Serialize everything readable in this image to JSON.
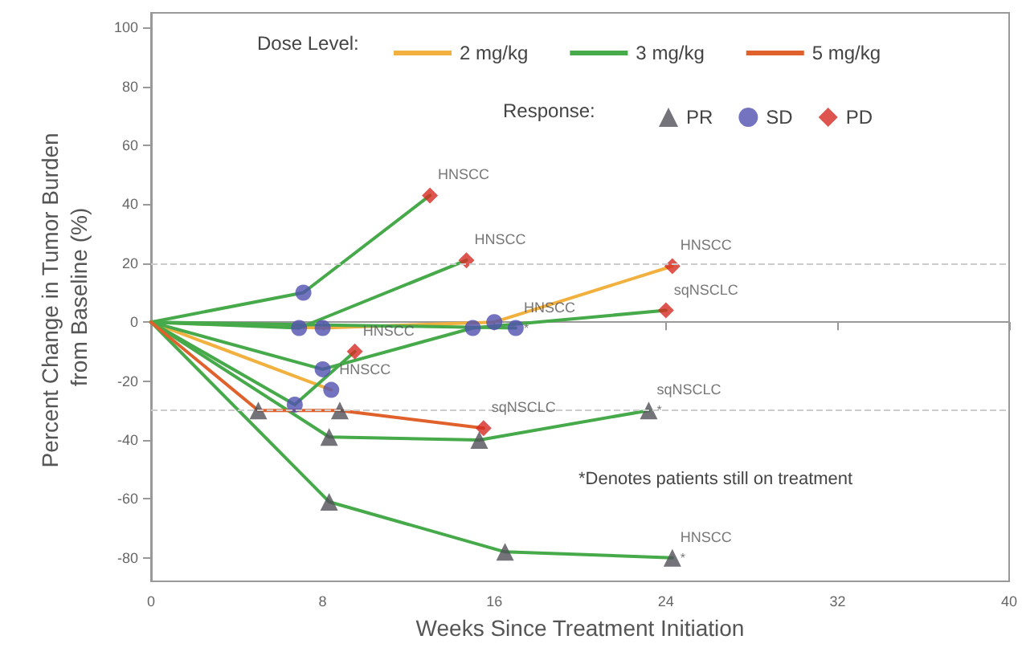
{
  "chart_data": {
    "type": "line",
    "xlabel": "Weeks Since Treatment Initiation",
    "ylabel": "Percent Change in Tumor Burden from Baseline (%)",
    "legend_title": "Dose Level:",
    "legend": "top",
    "xlim": [
      0,
      40
    ],
    "xticks": [
      0,
      8,
      16,
      24,
      32,
      40
    ],
    "ylim": [
      -88,
      105
    ],
    "yticks": [
      -80,
      -60,
      -40,
      -20,
      0,
      20,
      40,
      60,
      80,
      100
    ],
    "grid": false,
    "marker": "none",
    "line_style": "solid",
    "series": [
      {
        "name": "2 mg/kg",
        "color": "#f2b13e",
        "x": [
          0,
          8,
          16,
          24.3
        ],
        "values": [
          0,
          -2,
          0,
          19
        ]
      },
      {
        "color": "#f2b13e",
        "x": [
          0,
          8.4
        ],
        "values": [
          0,
          -23
        ]
      },
      {
        "name": "3 mg/kg",
        "color": "#46a94a",
        "x": [
          0,
          7.1,
          13
        ],
        "values": [
          0,
          10,
          43
        ]
      },
      {
        "color": "#46a94a",
        "x": [
          0,
          6.9,
          14.7
        ],
        "values": [
          0,
          -2,
          21
        ]
      },
      {
        "color": "#46a94a",
        "x": [
          0,
          8,
          15,
          24
        ],
        "values": [
          0,
          -16,
          -2,
          4
        ]
      },
      {
        "color": "#46a94a",
        "x": [
          0,
          17
        ],
        "values": [
          0,
          -2
        ]
      },
      {
        "color": "#46a94a",
        "x": [
          0,
          6.7,
          9.5
        ],
        "values": [
          0,
          -28,
          -10
        ]
      },
      {
        "color": "#46a94a",
        "x": [
          0,
          8.3,
          15.3,
          23.2
        ],
        "values": [
          0,
          -39,
          -40,
          -30
        ]
      },
      {
        "color": "#46a94a",
        "x": [
          0,
          8.3,
          16.5,
          24.3
        ],
        "values": [
          0,
          -61,
          -78,
          -80
        ]
      },
      {
        "name": "5 mg/kg",
        "color": "#e0612c",
        "x": [
          0,
          5,
          8.8,
          15.5
        ],
        "values": [
          0,
          -30,
          -30,
          -36
        ]
      },
      {
        "name": "PR",
        "type": "scatter",
        "marker": "triangle",
        "color": "#505058",
        "x": [
          5,
          8.8,
          8.3,
          15.3,
          23.2,
          8.3,
          16.5,
          24.3
        ],
        "values": [
          -30,
          -30,
          -39,
          -40,
          -30,
          -61,
          -78,
          -80
        ]
      },
      {
        "name": "SD",
        "type": "scatter",
        "marker": "circle",
        "color": "#5050b0",
        "x": [
          7.1,
          6.9,
          8,
          16,
          8,
          15,
          17,
          6.7,
          8.4
        ],
        "values": [
          10,
          -2,
          -2,
          0,
          -16,
          -2,
          -2,
          -28,
          -23
        ]
      },
      {
        "name": "PD",
        "type": "scatter",
        "marker": "diamond",
        "color": "#d42a22",
        "x": [
          13,
          14.7,
          24.3,
          24,
          9.5,
          15.5
        ],
        "values": [
          43,
          21,
          19,
          4,
          -10,
          -36
        ]
      }
    ],
    "ref_lines": [
      {
        "axis": "y",
        "value": 20,
        "color": "#cccccc",
        "line_style": "dashed"
      },
      {
        "axis": "y",
        "value": -30,
        "color": "#cccccc",
        "line_style": "dashed"
      }
    ],
    "annotations": [
      "Response:",
      "*Denotes patients still on treatment",
      {
        "text": "HNSCC",
        "x": 13,
        "y": 43
      },
      {
        "text": "HNSCC",
        "x": 14.7,
        "y": 21
      },
      {
        "text": "HNSCC",
        "x": 24.3,
        "y": 19
      },
      {
        "text": "sqNSCLC",
        "x": 24,
        "y": 4
      },
      {
        "text": "HNSCC",
        "x": 17,
        "y": -2
      },
      {
        "text": "HNSCC",
        "x": 9.5,
        "y": -10
      },
      {
        "text": "HNSCC",
        "x": 8.4,
        "y": -23
      },
      {
        "text": "sqNSCLC",
        "x": 15.5,
        "y": -36
      },
      {
        "text": "sqNSCLC",
        "x": 23.2,
        "y": -30
      },
      {
        "text": "HNSCC",
        "x": 24.3,
        "y": -80
      },
      {
        "text": "*",
        "x": 17,
        "y": -2
      },
      {
        "text": "*",
        "x": 23.2,
        "y": -30
      },
      {
        "text": "*",
        "x": 24.3,
        "y": -80
      }
    ]
  }
}
